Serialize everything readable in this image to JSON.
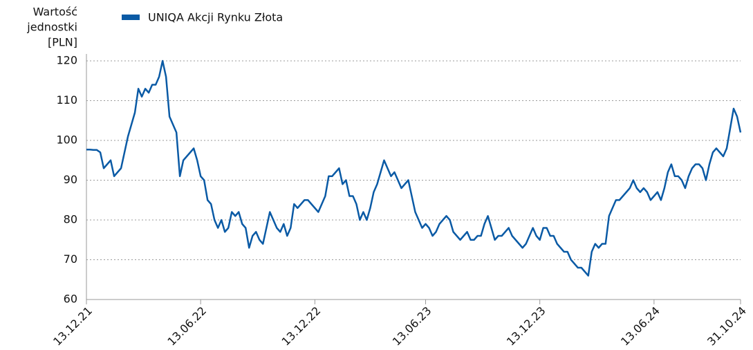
{
  "chart_data": {
    "type": "line",
    "y_label": [
      "Wartość",
      "jednostki",
      "[PLN]"
    ],
    "categories": [
      "13.12.21",
      null,
      null,
      null,
      null,
      null,
      null,
      null,
      null,
      null,
      null,
      null,
      null,
      null,
      null,
      null,
      null,
      null,
      null,
      null,
      null,
      null,
      null,
      null,
      null,
      null,
      null,
      null,
      null,
      null,
      null,
      null,
      null,
      "13.06.22",
      null,
      null,
      null,
      null,
      null,
      null,
      null,
      null,
      null,
      null,
      null,
      null,
      null,
      null,
      null,
      null,
      null,
      null,
      null,
      null,
      null,
      null,
      null,
      null,
      null,
      null,
      null,
      null,
      null,
      null,
      null,
      null,
      "13.12.22",
      null,
      null,
      null,
      null,
      null,
      null,
      null,
      null,
      null,
      null,
      null,
      null,
      null,
      null,
      null,
      null,
      null,
      null,
      null,
      null,
      null,
      null,
      null,
      null,
      null,
      null,
      null,
      null,
      null,
      null,
      null,
      "13.06.23",
      null,
      null,
      null,
      null,
      null,
      null,
      null,
      null,
      null,
      null,
      null,
      null,
      null,
      null,
      null,
      null,
      null,
      null,
      null,
      null,
      null,
      null,
      null,
      null,
      null,
      null,
      null,
      null,
      null,
      null,
      null,
      null,
      "13.12.23",
      null,
      null,
      null,
      null,
      null,
      null,
      null,
      null,
      null,
      null,
      null,
      null,
      null,
      null,
      null,
      null,
      null,
      null,
      null,
      null,
      null,
      null,
      null,
      null,
      null,
      null,
      null,
      null,
      null,
      null,
      null,
      null,
      "13.06.24",
      null,
      null,
      null,
      null,
      null,
      null,
      null,
      null,
      null,
      null,
      null,
      null,
      null,
      null,
      null,
      null,
      null,
      null,
      null,
      null,
      null,
      null,
      null,
      null,
      "31.10.24"
    ],
    "series": [
      {
        "name": "UNIQA Akcji Rynku Złota",
        "color": "#0a5aa5",
        "values": [
          97.7,
          97.7,
          97.6,
          97.6,
          97,
          93,
          94,
          95,
          91,
          92,
          93,
          97,
          101,
          104,
          107,
          113,
          111,
          113,
          112,
          114,
          114,
          116,
          120,
          116,
          106,
          104,
          102,
          91,
          95,
          96,
          97,
          98,
          95,
          91,
          90,
          85,
          84,
          80,
          78,
          80,
          77,
          78,
          82,
          81,
          82,
          79,
          78,
          73,
          76,
          77,
          75,
          74,
          78,
          82,
          80,
          78,
          77,
          79,
          76,
          78,
          84,
          83,
          84,
          85,
          85,
          84,
          83,
          82,
          84,
          86,
          91,
          91,
          92,
          93,
          89,
          90,
          86,
          86,
          84,
          80,
          82,
          80,
          83,
          87,
          89,
          92,
          95,
          93,
          91,
          92,
          90,
          88,
          89,
          90,
          86,
          82,
          80,
          78,
          79,
          78,
          76,
          77,
          79,
          80,
          81,
          80,
          77,
          76,
          75,
          76,
          77,
          75,
          75,
          76,
          76,
          79,
          81,
          78,
          75,
          76,
          76,
          77,
          78,
          76,
          75,
          74,
          73,
          74,
          76,
          78,
          76,
          75,
          78,
          78,
          76,
          76,
          74,
          73,
          72,
          72,
          70,
          69,
          68,
          68,
          67,
          66,
          72,
          74,
          73,
          74,
          74,
          81,
          83,
          85,
          85,
          86,
          87,
          88,
          90,
          88,
          87,
          88,
          87,
          85,
          86,
          87,
          85,
          88,
          92,
          94,
          91,
          91,
          90,
          88,
          91,
          93,
          94,
          94,
          93,
          90,
          94,
          97,
          98,
          97,
          96,
          98,
          103,
          108,
          106,
          102
        ]
      }
    ],
    "ylim": [
      60,
      120
    ],
    "yticks": [
      60,
      70,
      80,
      90,
      100,
      110,
      120
    ],
    "grid": true
  }
}
